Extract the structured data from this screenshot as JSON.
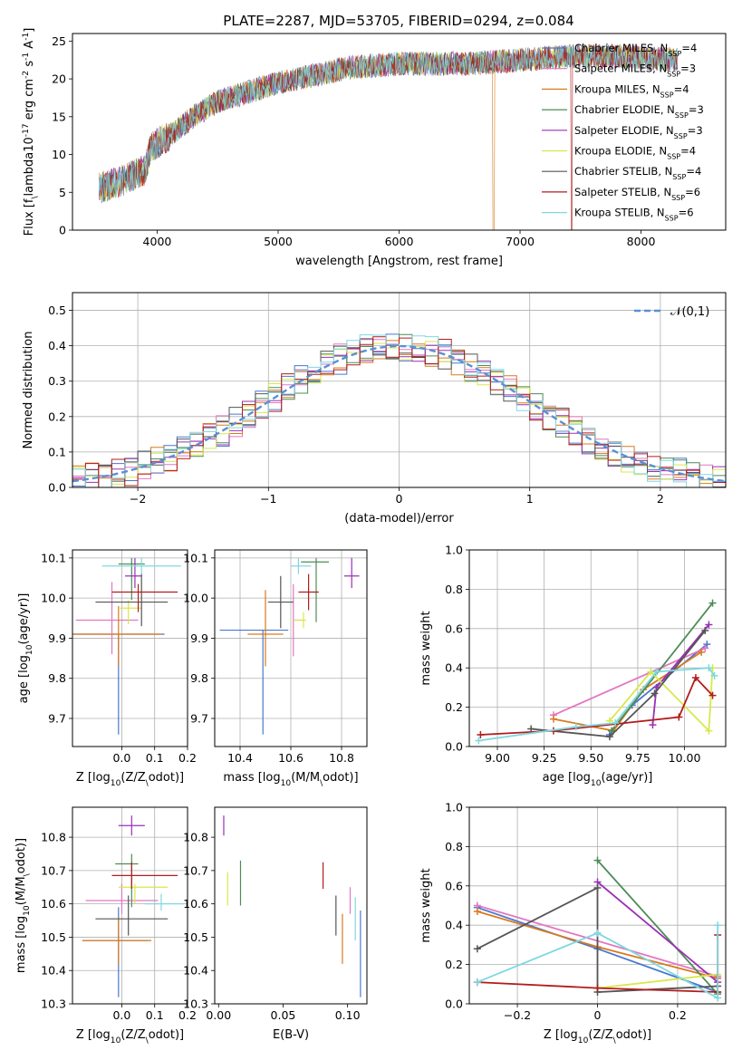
{
  "figure_title": "PLATE=2287, MJD=53705, FIBERID=0294, z=0.084",
  "models": [
    {
      "label": "Chabrier MILES, N$_{SSP}$=4",
      "color": "#4878cf"
    },
    {
      "label": "Salpeter MILES, N$_{SSP}$=3",
      "color": "#e377c2"
    },
    {
      "label": "Kroupa MILES, N$_{SSP}$=4",
      "color": "#d97a1f"
    },
    {
      "label": "Chabrier ELODIE, N$_{SSP}$=3",
      "color": "#4d8c57"
    },
    {
      "label": "Salpeter ELODIE, N$_{SSP}$=3",
      "color": "#9b30b5"
    },
    {
      "label": "Kroupa ELODIE, N$_{SSP}$=4",
      "color": "#d8e84a"
    },
    {
      "label": "Chabrier STELIB, N$_{SSP}$=4",
      "color": "#555555"
    },
    {
      "label": "Salpeter STELIB, N$_{SSP}$=6",
      "color": "#b21c1c"
    },
    {
      "label": "Kroupa STELIB, N$_{SSP}$=6",
      "color": "#7fd8e0"
    }
  ],
  "chart_data": [
    {
      "id": "spectrum",
      "type": "line",
      "xlabel": "wavelength [Angstrom, rest frame]",
      "ylabel": "Flux [f$_\\lambda$10$^{-17}$ erg cm$^{-2}$ s$^{-1}$ A$^{-1}$]",
      "xlim": [
        3300,
        8700
      ],
      "ylim": [
        0,
        26
      ],
      "xticks": [
        4000,
        5000,
        6000,
        7000,
        8000
      ],
      "yticks": [
        0,
        5,
        10,
        15,
        20,
        25
      ],
      "grid": false,
      "legend": "top-right",
      "continuum": [
        [
          3520,
          5.5
        ],
        [
          3700,
          6.5
        ],
        [
          3900,
          8
        ],
        [
          3950,
          11
        ],
        [
          4100,
          12.5
        ],
        [
          4300,
          15
        ],
        [
          4500,
          17
        ],
        [
          4800,
          18.5
        ],
        [
          5000,
          19.5
        ],
        [
          5300,
          20.5
        ],
        [
          5600,
          21.5
        ],
        [
          6000,
          22
        ],
        [
          6300,
          22
        ],
        [
          6600,
          22
        ],
        [
          7000,
          22.5
        ],
        [
          7400,
          23
        ],
        [
          7800,
          23
        ],
        [
          8300,
          22.5
        ]
      ],
      "x_start": 3520,
      "x_end": 8300
    },
    {
      "id": "residuals",
      "type": "step",
      "xlabel": "(data-model)/error",
      "ylabel": "Normed distribution",
      "xlim": [
        -2.5,
        2.5
      ],
      "ylim": [
        0,
        0.55
      ],
      "xticks": [
        -2,
        -1,
        0,
        1,
        2
      ],
      "yticks": [
        0.0,
        0.1,
        0.2,
        0.3,
        0.4,
        0.5
      ],
      "grid": true,
      "legend": "top-right",
      "gaussian_label": "$\\mathcal{N}(0,1)$",
      "gaussian_color": "#5b8fd6",
      "bin_width": 0.1
    },
    {
      "id": "age_vs_Z",
      "type": "errorbar",
      "xlabel": "Z [log$_{10}$($Z/Z_\\odot$)]",
      "ylabel": "age  [log$_{10}$($age/yr$)]",
      "xlim": [
        -0.15,
        0.2
      ],
      "ylim": [
        9.63,
        10.12
      ],
      "xticks": [
        -0.0,
        0.1,
        0.2
      ],
      "xtick_labels": [
        "0.0",
        "0.1",
        "0.2"
      ],
      "yticks": [
        9.7,
        9.8,
        9.9,
        10.0,
        10.1
      ],
      "grid": true,
      "points": [
        {
          "x": -0.01,
          "xerr": [
            0.17,
            0.14
          ],
          "y": 9.91,
          "yerr": [
            0.25,
            0.0
          ]
        },
        {
          "x": -0.03,
          "xerr": [
            0.11,
            0.08
          ],
          "y": 9.945,
          "yerr": [
            0.085,
            0.095
          ]
        },
        {
          "x": -0.01,
          "xerr": [
            0.15,
            0.13
          ],
          "y": 9.91,
          "yerr": [
            0.08,
            0.07
          ]
        },
        {
          "x": 0.03,
          "xerr": [
            0.04,
            0.04
          ],
          "y": 10.085,
          "yerr": [
            0.09,
            0.015
          ]
        },
        {
          "x": 0.04,
          "xerr": [
            0.03,
            0.02
          ],
          "y": 10.055,
          "yerr": [
            0.03,
            0.045
          ]
        },
        {
          "x": 0.02,
          "xerr": [
            0.03,
            0.04
          ],
          "y": 9.975,
          "yerr": [
            0.04,
            0.02
          ]
        },
        {
          "x": 0.06,
          "xerr": [
            0.14,
            0.08
          ],
          "y": 9.99,
          "yerr": [
            0.06,
            0.07
          ]
        },
        {
          "x": 0.05,
          "xerr": [
            0.08,
            0.12
          ],
          "y": 10.015,
          "yerr": [
            0.05,
            0.02
          ]
        },
        {
          "x": 0.06,
          "xerr": [
            0.12,
            0.12
          ],
          "y": 10.08,
          "yerr": [
            0.02,
            0.02
          ]
        }
      ]
    },
    {
      "id": "age_vs_mass",
      "type": "errorbar",
      "xlabel": "mass [log$_{10}$($M/M_\\odot$)]",
      "ylabel": "",
      "xlim": [
        10.3,
        10.9
      ],
      "ylim": [
        9.63,
        10.12
      ],
      "xticks": [
        10.4,
        10.6,
        10.8
      ],
      "yticks": [
        9.7,
        9.8,
        9.9,
        10.0,
        10.1
      ],
      "grid": true,
      "points": [
        {
          "x": 10.49,
          "xerr": [
            0.17,
            0.1
          ],
          "y": 9.92,
          "yerr": [
            0.26,
            0.0
          ]
        },
        {
          "x": 10.61,
          "xerr": [
            0.0,
            0.04
          ],
          "y": 9.945,
          "yerr": [
            0.09,
            0.09
          ]
        },
        {
          "x": 10.5,
          "xerr": [
            0.07,
            0.07
          ],
          "y": 9.91,
          "yerr": [
            0.08,
            0.11
          ]
        },
        {
          "x": 10.7,
          "xerr": [
            0.06,
            0.05
          ],
          "y": 10.09,
          "yerr": [
            0.15,
            0.01
          ]
        },
        {
          "x": 10.84,
          "xerr": [
            0.03,
            0.03
          ],
          "y": 10.055,
          "yerr": [
            0.03,
            0.045
          ]
        },
        {
          "x": 10.65,
          "xerr": [
            0.04,
            0.01
          ],
          "y": 9.945,
          "yerr": [
            0.02,
            0.02
          ]
        },
        {
          "x": 10.56,
          "xerr": [
            0.05,
            0.05
          ],
          "y": 9.99,
          "yerr": [
            0.065,
            0.065
          ]
        },
        {
          "x": 10.67,
          "xerr": [
            0.04,
            0.04
          ],
          "y": 10.015,
          "yerr": [
            0.045,
            0.045
          ]
        },
        {
          "x": 10.63,
          "xerr": [
            0.03,
            0.05
          ],
          "y": 10.08,
          "yerr": [
            0.02,
            0.02
          ]
        }
      ]
    },
    {
      "id": "weight_vs_age",
      "type": "line_marker",
      "xlabel": "age  [log$_{10}$($age/yr$)]",
      "ylabel": "mass weight",
      "xlim": [
        8.85,
        10.22
      ],
      "ylim": [
        0,
        1
      ],
      "xticks": [
        9.0,
        9.25,
        9.5,
        9.75,
        10.0
      ],
      "xtick_labels": [
        "9.00",
        "9.25",
        "9.50",
        "9.75",
        "10.00"
      ],
      "yticks": [
        0.0,
        0.2,
        0.4,
        0.6,
        0.8,
        1.0
      ],
      "grid": true,
      "series": [
        [
          [
            9.6,
            0.06
          ],
          [
            9.72,
            0.21
          ],
          [
            10.12,
            0.52
          ]
        ],
        [
          [
            9.3,
            0.16
          ],
          [
            10.11,
            0.5
          ]
        ],
        [
          [
            9.3,
            0.14
          ],
          [
            9.62,
            0.08
          ],
          [
            9.78,
            0.29
          ],
          [
            10.09,
            0.48
          ]
        ],
        [
          [
            9.61,
            0.08
          ],
          [
            10.15,
            0.73
          ]
        ],
        [
          [
            9.83,
            0.11
          ],
          [
            9.85,
            0.3
          ],
          [
            10.13,
            0.62
          ]
        ],
        [
          [
            9.6,
            0.13
          ],
          [
            9.82,
            0.38
          ],
          [
            10.13,
            0.08
          ],
          [
            10.15,
            0.4
          ]
        ],
        [
          [
            9.18,
            0.09
          ],
          [
            9.6,
            0.05
          ],
          [
            9.84,
            0.27
          ],
          [
            10.11,
            0.59
          ]
        ],
        [
          [
            8.91,
            0.06
          ],
          [
            9.3,
            0.08
          ],
          [
            9.97,
            0.15
          ],
          [
            10.06,
            0.35
          ],
          [
            10.15,
            0.26
          ]
        ],
        [
          [
            8.9,
            0.03
          ],
          [
            9.42,
            0.1
          ],
          [
            9.63,
            0.12
          ],
          [
            9.85,
            0.38
          ],
          [
            10.13,
            0.4
          ],
          [
            10.16,
            0.36
          ]
        ]
      ]
    },
    {
      "id": "mass_vs_Z",
      "type": "errorbar",
      "xlabel": "Z [log$_{10}$($Z/Z_\\odot$)]",
      "ylabel": "mass [log$_{10}$($M/M_\\odot$)]",
      "xlim": [
        -0.15,
        0.2
      ],
      "ylim": [
        10.3,
        10.89
      ],
      "xticks": [
        -0.0,
        0.1,
        0.2
      ],
      "xtick_labels": [
        "0.0",
        "0.1",
        "0.2"
      ],
      "yticks": [
        10.3,
        10.4,
        10.5,
        10.6,
        10.7,
        10.8
      ],
      "grid": true,
      "points": [
        {
          "x": -0.01,
          "xerr": [
            0.11,
            0.09
          ],
          "y": 10.49,
          "yerr": [
            0.17,
            0.1
          ]
        },
        {
          "x": 0.0,
          "xerr": [
            0.11,
            0.11
          ],
          "y": 10.61,
          "yerr": [
            0.04,
            0.05
          ]
        },
        {
          "x": -0.01,
          "xerr": [
            0.11,
            0.1
          ],
          "y": 10.49,
          "yerr": [
            0.07,
            0.07
          ]
        },
        {
          "x": 0.03,
          "xerr": [
            0.05,
            0.02
          ],
          "y": 10.72,
          "yerr": [
            0.13,
            0.03
          ]
        },
        {
          "x": 0.03,
          "xerr": [
            0.04,
            0.04
          ],
          "y": 10.835,
          "yerr": [
            0.03,
            0.03
          ]
        },
        {
          "x": 0.04,
          "xerr": [
            0.05,
            0.1
          ],
          "y": 10.65,
          "yerr": [
            0.05,
            0.01
          ]
        },
        {
          "x": 0.02,
          "xerr": [
            0.1,
            0.12
          ],
          "y": 10.555,
          "yerr": [
            0.05,
            0.07
          ]
        },
        {
          "x": 0.03,
          "xerr": [
            0.06,
            0.14
          ],
          "y": 10.685,
          "yerr": [
            0.04,
            0.04
          ]
        },
        {
          "x": 0.12,
          "xerr": [
            0.05,
            0.07
          ],
          "y": 10.6,
          "yerr": [
            0.02,
            0.03
          ]
        }
      ]
    },
    {
      "id": "mass_vs_ebv",
      "type": "errorbar",
      "xlabel": "E(B-V)",
      "ylabel": "",
      "xlim": [
        -0.003,
        0.115
      ],
      "ylim": [
        10.3,
        10.89
      ],
      "xticks": [
        0.0,
        0.05,
        0.1
      ],
      "xtick_labels": [
        "0.00",
        "0.05",
        "0.10"
      ],
      "yticks": [
        10.3,
        10.4,
        10.5,
        10.6,
        10.7,
        10.8
      ],
      "grid": false,
      "points": [
        {
          "x": 0.11,
          "xerr": [
            0,
            0
          ],
          "y": 10.49,
          "yerr": [
            0.17,
            0.09
          ]
        },
        {
          "x": 0.102,
          "xerr": [
            0,
            0
          ],
          "y": 10.61,
          "yerr": [
            0.04,
            0.04
          ]
        },
        {
          "x": 0.096,
          "xerr": [
            0,
            0
          ],
          "y": 10.49,
          "yerr": [
            0.07,
            0.08
          ]
        },
        {
          "x": 0.017,
          "xerr": [
            0,
            0
          ],
          "y": 10.665,
          "yerr": [
            0.07,
            0.065
          ]
        },
        {
          "x": 0.004,
          "xerr": [
            0,
            0
          ],
          "y": 10.835,
          "yerr": [
            0.03,
            0.03
          ]
        },
        {
          "x": 0.007,
          "xerr": [
            0,
            0
          ],
          "y": 10.645,
          "yerr": [
            0.05,
            0.05
          ]
        },
        {
          "x": 0.091,
          "xerr": [
            0,
            0
          ],
          "y": 10.555,
          "yerr": [
            0.05,
            0.07
          ]
        },
        {
          "x": 0.081,
          "xerr": [
            0,
            0
          ],
          "y": 10.685,
          "yerr": [
            0.04,
            0.04
          ]
        },
        {
          "x": 0.106,
          "xerr": [
            0,
            0
          ],
          "y": 10.56,
          "yerr": [
            0.07,
            0.06
          ]
        }
      ]
    },
    {
      "id": "weight_vs_Z",
      "type": "line_marker",
      "xlabel": "Z [log$_{10}$($Z/Z_\\odot$)]",
      "ylabel": "mass weight",
      "xlim": [
        -0.32,
        0.32
      ],
      "ylim": [
        0,
        1
      ],
      "xticks": [
        -0.2,
        0.0,
        0.2
      ],
      "yticks": [
        0.0,
        0.2,
        0.4,
        0.6,
        0.8,
        1.0
      ],
      "grid": true,
      "series": [
        [
          [
            -0.3,
            0.49
          ],
          [
            0.0,
            0.28
          ],
          [
            0.3,
            0.06
          ]
        ],
        [
          [
            -0.3,
            0.5
          ],
          [
            0.3,
            0.14
          ]
        ],
        [
          [
            -0.3,
            0.47
          ],
          [
            0.0,
            0.29
          ],
          [
            0.3,
            0.13
          ]
        ],
        [
          [
            0.0,
            0.73
          ],
          [
            0.3,
            0.05
          ]
        ],
        [
          [
            0.0,
            0.62
          ],
          [
            0.3,
            0.11
          ]
        ],
        [
          [
            0.0,
            0.08
          ],
          [
            0.3,
            0.15
          ]
        ],
        [
          [
            -0.3,
            0.28
          ],
          [
            0.0,
            0.59
          ],
          [
            0.0,
            0.06
          ],
          [
            0.3,
            0.09
          ]
        ],
        [
          [
            -0.3,
            0.11
          ],
          [
            0.0,
            0.08
          ],
          [
            0.3,
            0.06
          ],
          [
            0.3,
            0.35
          ]
        ],
        [
          [
            -0.3,
            0.11
          ],
          [
            0.0,
            0.36
          ],
          [
            0.3,
            0.03
          ],
          [
            0.3,
            0.4
          ]
        ]
      ]
    }
  ]
}
